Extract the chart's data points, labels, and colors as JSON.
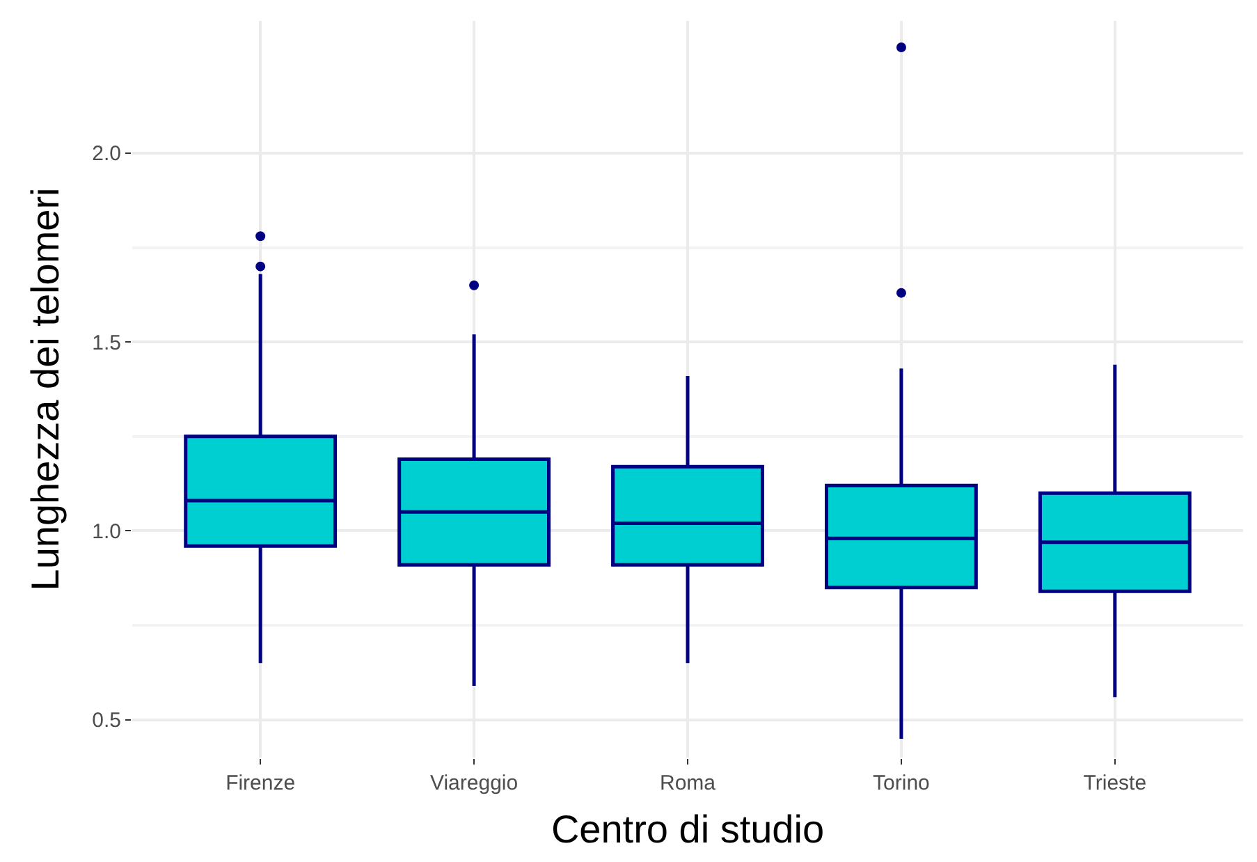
{
  "chart_data": {
    "type": "box",
    "xlabel": "Centro di studio",
    "ylabel": "Lunghezza dei telomeri",
    "categories": [
      "Firenze",
      "Viareggio",
      "Roma",
      "Torino",
      "Trieste"
    ],
    "series": [
      {
        "color": "#00cfd1",
        "boxes": [
          {
            "low": 0.65,
            "q1": 0.96,
            "median": 1.08,
            "q3": 1.25,
            "high": 1.68
          },
          {
            "low": 0.59,
            "q1": 0.91,
            "median": 1.05,
            "q3": 1.19,
            "high": 1.52
          },
          {
            "low": 0.65,
            "q1": 0.91,
            "median": 1.02,
            "q3": 1.17,
            "high": 1.41
          },
          {
            "low": 0.45,
            "q1": 0.85,
            "median": 0.98,
            "q3": 1.12,
            "high": 1.43
          },
          {
            "low": 0.56,
            "q1": 0.84,
            "median": 0.97,
            "q3": 1.1,
            "high": 1.44
          }
        ]
      },
      {
        "type": "scatter",
        "color": "#000080",
        "x": [
          "Firenze",
          "Firenze",
          "Viareggio",
          "Torino",
          "Torino"
        ],
        "values": [
          1.7,
          1.78,
          1.65,
          1.63,
          2.28
        ]
      }
    ],
    "ylim": [
      0.4,
      2.35
    ],
    "yticks": [
      0.5,
      {
        "value": 1,
        "label": "1.0"
      },
      1.5,
      {
        "value": 2,
        "label": "2.0"
      }
    ],
    "grid": true
  }
}
